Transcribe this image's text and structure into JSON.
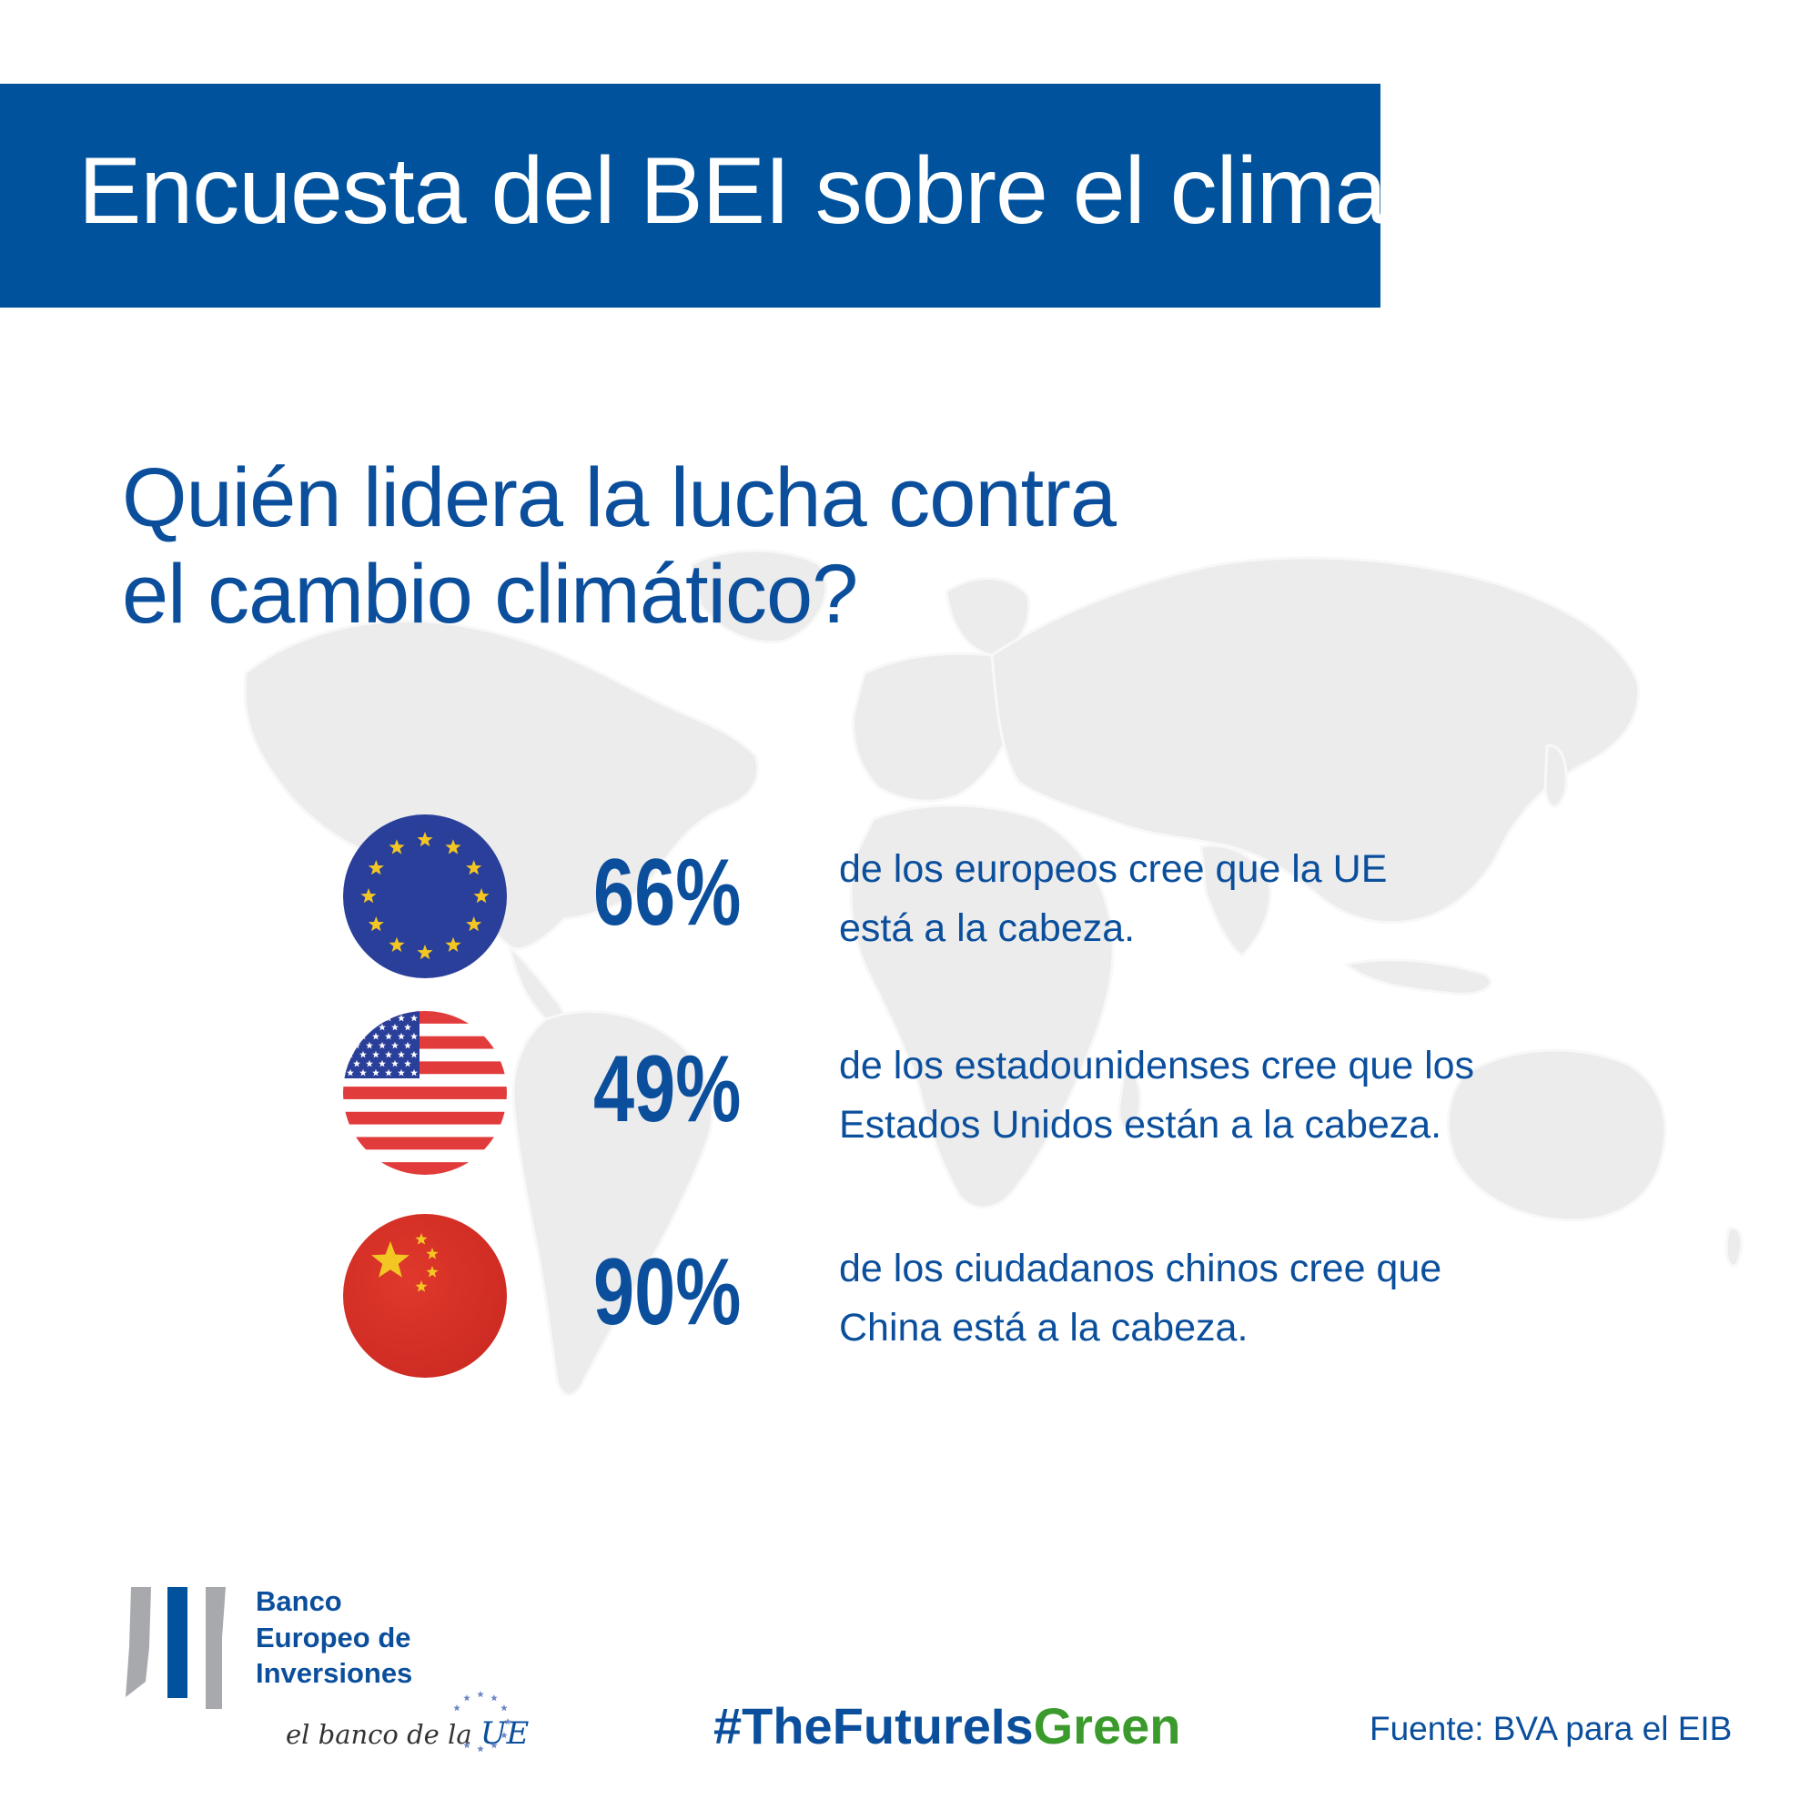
{
  "header": {
    "title": "Encuesta del BEI sobre el clima"
  },
  "question": {
    "line1": "Quién lidera la lucha contra",
    "line2": "el cambio climático?"
  },
  "stats": [
    {
      "flag": "eu-flag-icon",
      "percent": "66%",
      "line1": "de los europeos cree que la UE",
      "line2": "está a la cabeza."
    },
    {
      "flag": "us-flag-icon",
      "percent": "49%",
      "line1": "de los estadounidenses cree que los",
      "line2": "Estados Unidos están a la cabeza."
    },
    {
      "flag": "china-flag-icon",
      "percent": "90%",
      "line1": "de los ciudadanos chinos cree que",
      "line2": "China está a la cabeza."
    }
  ],
  "logo": {
    "line1": "Banco",
    "line2": "Europeo de",
    "line3": "Inversiones",
    "tagline_prefix": "el banco de la ",
    "tagline_emphasis": "UE"
  },
  "hashtag": {
    "part1": "#TheFutureIs",
    "part2": "Green"
  },
  "source": "Fuente: BVA para el EIB",
  "colors": {
    "brand_blue": "#00529c",
    "text_blue": "#0b4f9c",
    "green": "#3b9a2c",
    "map_gray": "#ececec",
    "eu_blue": "#2a3f99",
    "star_yellow": "#f3c623",
    "us_red": "#e23b3b",
    "china_red": "#dd3328"
  }
}
